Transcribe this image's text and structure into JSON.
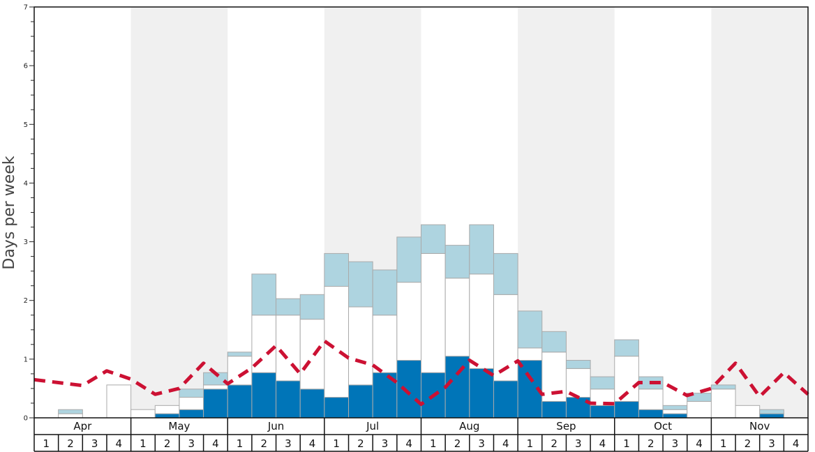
{
  "chart_data": {
    "type": "bar",
    "ylabel": "Days per week",
    "ylim": [
      0,
      7
    ],
    "y_ticks": [
      "0",
      "1",
      "2",
      "3",
      "4",
      "5",
      "6",
      "7"
    ],
    "months": [
      "Apr",
      "May",
      "Jun",
      "Jul",
      "Aug",
      "Sep",
      "Oct",
      "Nov"
    ],
    "week_labels": [
      "1",
      "2",
      "3",
      "4"
    ],
    "alternating_month_shading": true,
    "colors": {
      "dark": "#0075b8",
      "white": "#ffffff",
      "light": "#aed4e0",
      "line": "#cc1133",
      "shade": "#f0f0f0",
      "bar_border": "#aaaaaa"
    },
    "series": [
      {
        "values": [
          0,
          0,
          0,
          0,
          0,
          0.07,
          0.14,
          0.49,
          0.56,
          0.77,
          0.63,
          0.49,
          0.35,
          0.56,
          0.77,
          0.98,
          0.77,
          1.05,
          0.84,
          0.63,
          0.98,
          0.28,
          0.35,
          0.21,
          0.28,
          0.14,
          0.07,
          0,
          0,
          0,
          0.07,
          0
        ]
      },
      {
        "values": [
          0,
          0.07,
          0,
          0.56,
          0.14,
          0.14,
          0.21,
          0.07,
          0.49,
          0.98,
          1.12,
          1.19,
          1.89,
          1.33,
          0.98,
          1.33,
          2.03,
          1.33,
          1.61,
          1.47,
          0.21,
          0.84,
          0.49,
          0.28,
          0.77,
          0.35,
          0.07,
          0.28,
          0.49,
          0.21,
          0,
          0
        ]
      },
      {
        "values": [
          0,
          0.07,
          0,
          0,
          0,
          0,
          0.14,
          0.21,
          0.07,
          0.7,
          0.28,
          0.42,
          0.56,
          0.77,
          0.77,
          0.77,
          0.49,
          0.56,
          0.84,
          0.7,
          0.63,
          0.35,
          0.14,
          0.21,
          0.28,
          0.21,
          0.07,
          0.14,
          0.07,
          0,
          0.07,
          0
        ]
      },
      {
        "type": "line",
        "style": "dashed",
        "values": [
          0.65,
          0.6,
          0.55,
          0.8,
          0.66,
          0.4,
          0.5,
          0.93,
          0.58,
          0.85,
          1.23,
          0.75,
          1.31,
          1.02,
          0.9,
          0.6,
          0.23,
          0.52,
          0.98,
          0.72,
          0.97,
          0.4,
          0.45,
          0.25,
          0.24,
          0.6,
          0.6,
          0.38,
          0.5,
          0.93,
          0.36,
          0.77,
          0.4
        ]
      }
    ]
  }
}
